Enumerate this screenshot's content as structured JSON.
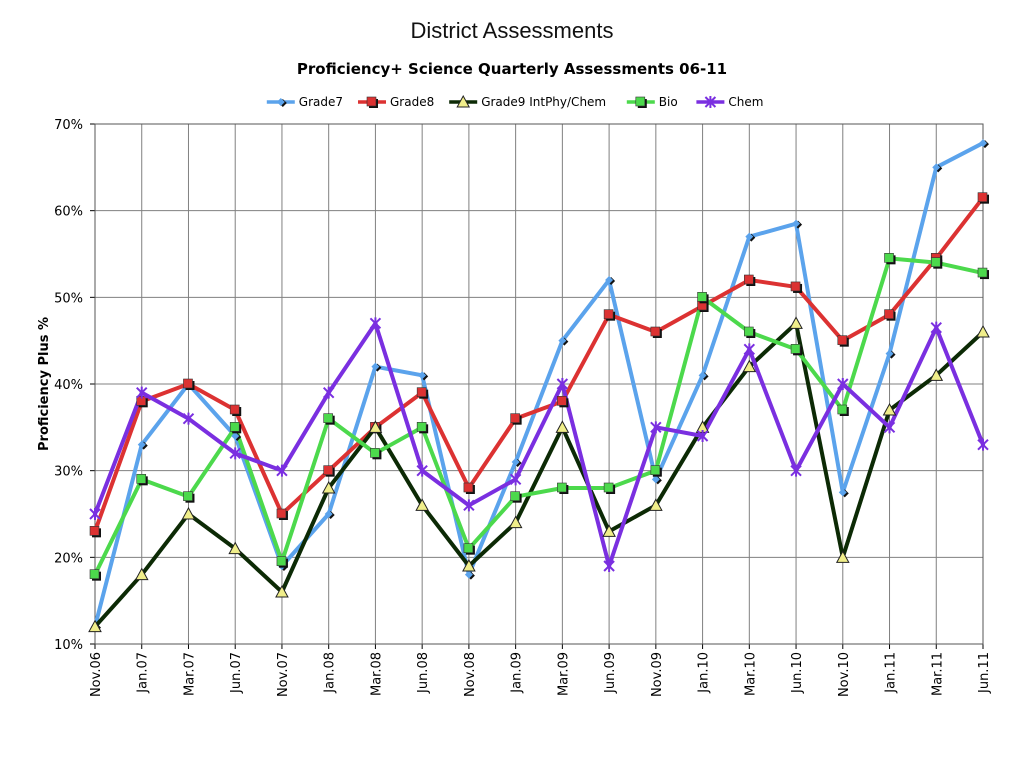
{
  "slide": {
    "title": "District Assessments"
  },
  "chart_data": {
    "type": "line",
    "title": "Proficiency+ Science Quarterly Assessments 06-11",
    "xlabel": "",
    "ylabel": "Proficiency Plus %",
    "ylim": [
      10,
      70
    ],
    "yticks": [
      "10%",
      "20%",
      "30%",
      "40%",
      "50%",
      "60%",
      "70%"
    ],
    "grid": true,
    "legend_position": "top",
    "categories": [
      "Nov.06",
      "Jan.07",
      "Mar.07",
      "Jun.07",
      "Nov.07",
      "Jan.08",
      "Mar.08",
      "Jun.08",
      "Nov.08",
      "Jan.09",
      "Mar.09",
      "Jun.09",
      "Nov.09",
      "Jan.10",
      "Mar.10",
      "Jun.10",
      "Nov.10",
      "Jan.11",
      "Mar.11",
      "Jun.11"
    ],
    "series": [
      {
        "name": "Grade7",
        "color": "#5ba3ec",
        "marker": "diamond",
        "values": [
          12,
          33,
          40,
          34,
          19,
          25,
          42,
          41,
          18,
          31,
          45,
          52,
          29,
          41,
          57,
          58.5,
          27.5,
          43.5,
          65,
          67.8
        ]
      },
      {
        "name": "Grade8",
        "color": "#dc3232",
        "marker": "square",
        "values": [
          23,
          38,
          40,
          37,
          25,
          30,
          35,
          39,
          28,
          36,
          38,
          48,
          46,
          49,
          52,
          51.2,
          45,
          48,
          54.5,
          61.5
        ]
      },
      {
        "name": "Grade9 IntPhy/Chem",
        "color": "#0c2a05",
        "marker": "triangle",
        "values": [
          12,
          18,
          25,
          21,
          16,
          28,
          35,
          26,
          19,
          24,
          35,
          23,
          26,
          35,
          42,
          47,
          20,
          37,
          41,
          46
        ]
      },
      {
        "name": "Bio",
        "color": "#4cd94c",
        "marker": "square",
        "values": [
          18,
          29,
          27,
          35,
          19.5,
          36,
          32,
          35,
          21,
          27,
          28,
          28,
          30,
          50,
          46,
          44,
          37,
          54.5,
          54,
          52.8
        ]
      },
      {
        "name": "Chem",
        "color": "#7a2fe0",
        "marker": "x",
        "values": [
          25,
          39,
          36,
          32,
          30,
          39,
          47,
          30,
          26,
          29,
          40,
          19,
          35,
          34,
          44,
          30,
          40,
          35,
          46.5,
          33
        ]
      }
    ]
  }
}
